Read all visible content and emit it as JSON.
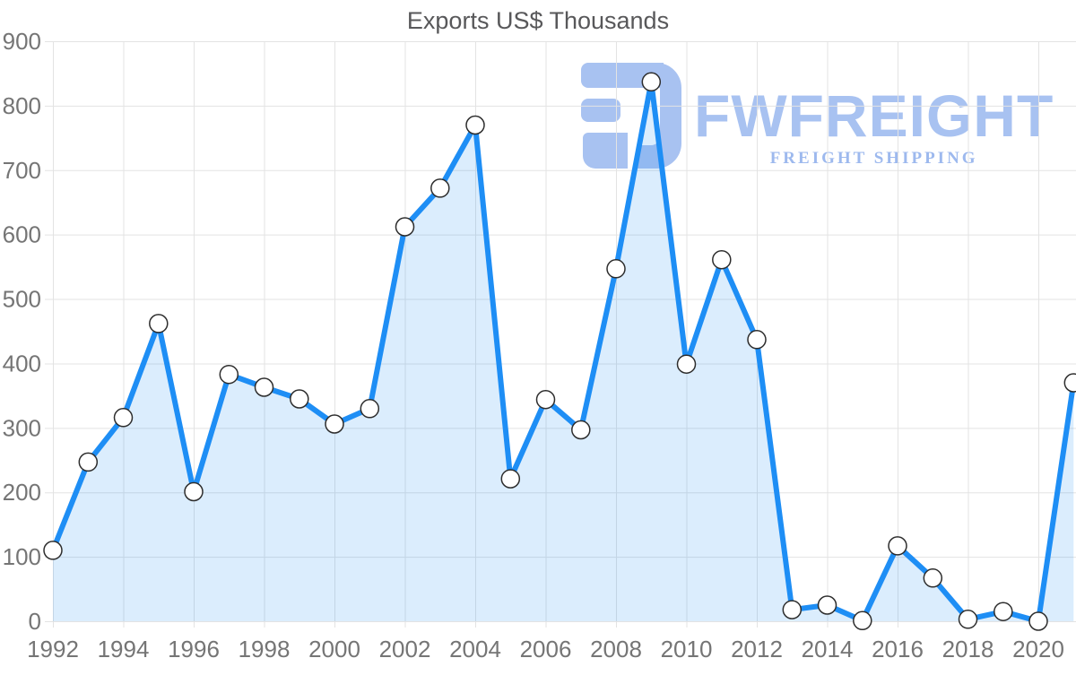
{
  "chart_data": {
    "type": "area",
    "title": "Exports US$ Thousands",
    "x": [
      1992,
      1993,
      1994,
      1995,
      1996,
      1997,
      1998,
      1999,
      2000,
      2001,
      2002,
      2003,
      2004,
      2005,
      2006,
      2007,
      2008,
      2009,
      2010,
      2011,
      2012,
      2013,
      2014,
      2015,
      2016,
      2017,
      2018,
      2019,
      2020,
      2021
    ],
    "values": [
      110,
      247,
      316,
      462,
      201,
      383,
      363,
      345,
      306,
      330,
      612,
      672,
      770,
      221,
      344,
      297,
      547,
      837,
      399,
      561,
      437,
      18,
      25,
      1,
      117,
      67,
      3,
      15,
      0,
      370
    ],
    "xlabel": "",
    "ylabel": "",
    "ylim": [
      0,
      900
    ],
    "y_tick_step": 100,
    "y_tick_labels": [
      "0",
      "100",
      "200",
      "300",
      "400",
      "500",
      "600",
      "700",
      "800",
      "900"
    ],
    "x_tick_years": [
      1992,
      1994,
      1996,
      1998,
      2000,
      2002,
      2004,
      2006,
      2008,
      2010,
      2012,
      2014,
      2016,
      2018,
      2020
    ],
    "x_tick_labels": [
      "1992",
      "1994",
      "1996",
      "1998",
      "2000",
      "2002",
      "2004",
      "2006",
      "2008",
      "2010",
      "2012",
      "2014",
      "2016",
      "2018",
      "2020"
    ],
    "grid": true,
    "legend": "none",
    "colors": {
      "line": "#1e8ef5",
      "fill": "rgba(30,142,245,0.16)",
      "marker_fill": "#ffffff",
      "marker_stroke": "#2d2d2d",
      "grid": "#e3e3e3",
      "tick_text": "#757575",
      "title_text": "#58585a"
    }
  },
  "watermark": {
    "name": "FWFREIGHT",
    "tagline": "FREIGHT SHIPPING",
    "color": "#a8c2f1",
    "tagline_color": "#9db9ee"
  }
}
